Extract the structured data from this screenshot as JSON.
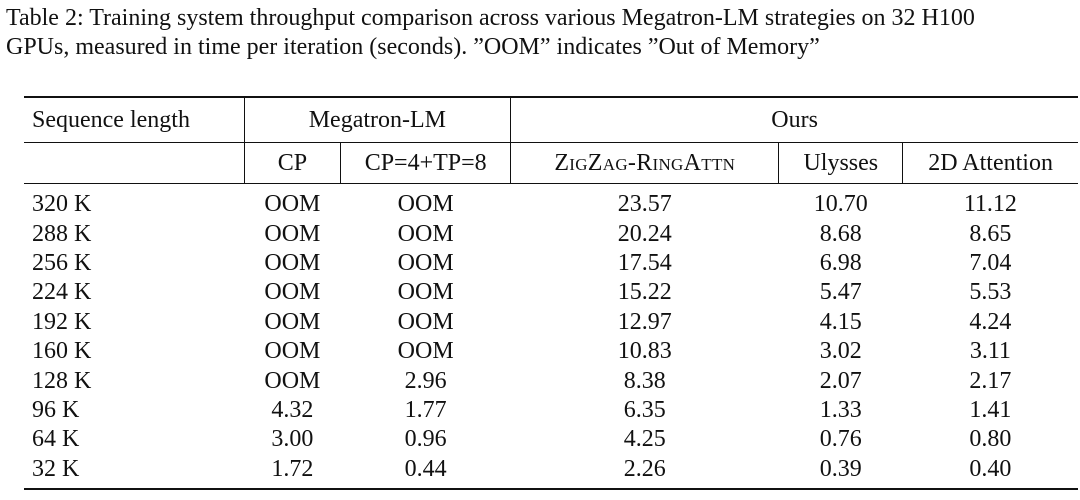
{
  "caption": {
    "line1": "Table 2: Training system throughput comparison across various Megatron-LM strategies on 32 H100",
    "line2": "GPUs, measured in time per iteration (seconds). ”OOM” indicates ”Out of Memory”"
  },
  "table": {
    "group_headers": {
      "seq": "Sequence length",
      "megatron": "Megatron-LM",
      "ours": "Ours"
    },
    "sub_headers": {
      "cp": "CP",
      "cp_tp": "CP=4+TP=8",
      "zigzag": "ZigZag-RingAttn",
      "ulysses": "Ulysses",
      "attn2d": "2D Attention"
    },
    "rows": [
      {
        "seq": "320 K",
        "cp": "OOM",
        "cp_tp": "OOM",
        "zigzag": "23.57",
        "ulysses": "10.70",
        "attn2d": "11.12"
      },
      {
        "seq": "288 K",
        "cp": "OOM",
        "cp_tp": "OOM",
        "zigzag": "20.24",
        "ulysses": "8.68",
        "attn2d": "8.65"
      },
      {
        "seq": "256 K",
        "cp": "OOM",
        "cp_tp": "OOM",
        "zigzag": "17.54",
        "ulysses": "6.98",
        "attn2d": "7.04"
      },
      {
        "seq": "224 K",
        "cp": "OOM",
        "cp_tp": "OOM",
        "zigzag": "15.22",
        "ulysses": "5.47",
        "attn2d": "5.53"
      },
      {
        "seq": "192 K",
        "cp": "OOM",
        "cp_tp": "OOM",
        "zigzag": "12.97",
        "ulysses": "4.15",
        "attn2d": "4.24"
      },
      {
        "seq": "160 K",
        "cp": "OOM",
        "cp_tp": "OOM",
        "zigzag": "10.83",
        "ulysses": "3.02",
        "attn2d": "3.11"
      },
      {
        "seq": "128 K",
        "cp": "OOM",
        "cp_tp": "2.96",
        "zigzag": "8.38",
        "ulysses": "2.07",
        "attn2d": "2.17"
      },
      {
        "seq": "96 K",
        "cp": "4.32",
        "cp_tp": "1.77",
        "zigzag": "6.35",
        "ulysses": "1.33",
        "attn2d": "1.41"
      },
      {
        "seq": "64 K",
        "cp": "3.00",
        "cp_tp": "0.96",
        "zigzag": "4.25",
        "ulysses": "0.76",
        "attn2d": "0.80"
      },
      {
        "seq": "32 K",
        "cp": "1.72",
        "cp_tp": "0.44",
        "zigzag": "2.26",
        "ulysses": "0.39",
        "attn2d": "0.40"
      }
    ]
  }
}
